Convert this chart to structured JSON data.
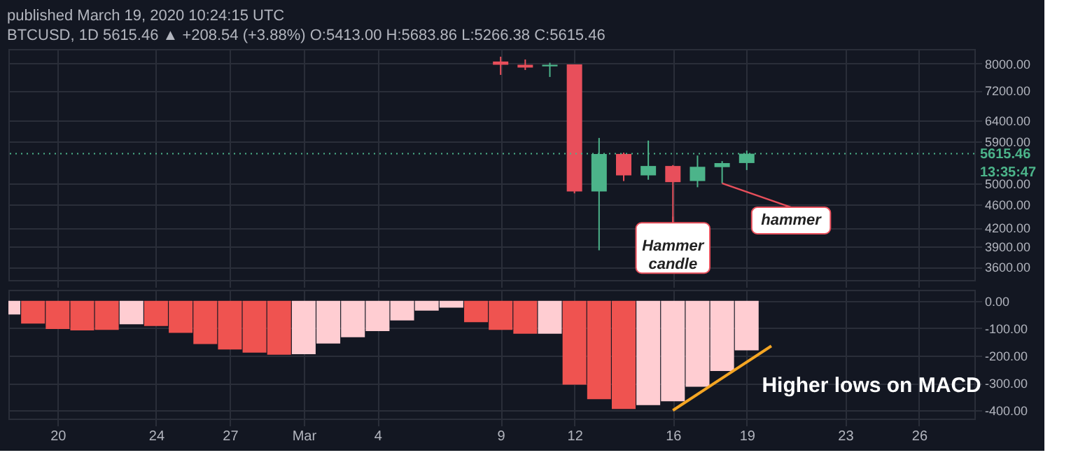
{
  "chart_data": [
    {
      "type": "candlestick",
      "title": "published March 19, 2020 10:24:15 UTC",
      "subtitle": "BTCUSD, 1D  5615.46 ▲ +208.54 (+3.88%) O:5413.00 H:5683.86 L:5266.38 C:5615.46",
      "x": [
        "2020-03-09",
        "2020-03-10",
        "2020-03-11",
        "2020-03-12",
        "2020-03-13",
        "2020-03-14",
        "2020-03-15",
        "2020-03-16",
        "2020-03-17",
        "2020-03-18",
        "2020-03-19"
      ],
      "ohlc": [
        [
          8064,
          8218,
          7652,
          7962
        ],
        [
          7962,
          8129,
          7800,
          7875
        ],
        [
          7912,
          8025,
          7590,
          7962
        ],
        [
          7975,
          7975,
          4806,
          4843
        ],
        [
          4843,
          5973,
          3843,
          5610
        ],
        [
          5610,
          5640,
          5044,
          5157
        ],
        [
          5157,
          5912,
          5070,
          5351
        ],
        [
          5351,
          5370,
          4391,
          5022
        ],
        [
          5044,
          5575,
          4923,
          5334
        ],
        [
          5326,
          5454,
          5000,
          5410
        ],
        [
          5413.0,
          5683.86,
          5266.38,
          5615.46
        ]
      ],
      "colors": [
        "#e84f5b",
        "#e84f5b",
        "#4cb48a",
        "#e84f5b",
        "#4cb48a",
        "#e84f5b",
        "#4cb48a",
        "#e84f5b",
        "#4cb48a",
        "#4cb48a",
        "#4cb48a"
      ],
      "log": true,
      "xlim": [
        "2020-02-18",
        "2020-03-28T06:00"
      ],
      "ylim": [
        3420,
        8470
      ],
      "xticks": [
        {
          "value": "2020-02-20",
          "label": null
        },
        {
          "value": "2020-02-24",
          "label": null
        },
        {
          "value": "2020-02-27",
          "label": null
        },
        {
          "value": "2020-03-01",
          "label": null
        },
        {
          "value": "2020-03-04",
          "label": null
        },
        {
          "value": "2020-03-09",
          "label": null
        },
        {
          "value": "2020-03-12",
          "label": null
        },
        {
          "value": "2020-03-16",
          "label": null
        },
        {
          "value": "2020-03-19",
          "label": null
        },
        {
          "value": "2020-03-23",
          "label": null
        },
        {
          "value": "2020-03-26",
          "label": null
        }
      ],
      "yticks": [
        {
          "value": 8000,
          "label": "8000.00"
        },
        {
          "value": 7200,
          "label": "7200.00"
        },
        {
          "value": 6400,
          "label": "6400.00"
        },
        {
          "value": 5900,
          "label": "5900.00"
        },
        {
          "value": 5000,
          "label": "5000.00"
        },
        {
          "value": 4600,
          "label": "4600.00"
        },
        {
          "value": 4200,
          "label": "4200.00"
        },
        {
          "value": 3900,
          "label": "3900.00"
        },
        {
          "value": 3600,
          "label": "3600.00"
        }
      ],
      "tick_labels": "y",
      "grid": true,
      "ref_lines": [
        {
          "axis": "y",
          "value": 5615.46,
          "label": "5615.46",
          "color": "#4cb48a",
          "line_style": "dotted"
        }
      ],
      "annotations": [
        {
          "text": "Hammer candle",
          "x": "2020-03-16",
          "y": 4391
        },
        {
          "text": "hammer",
          "x": "2020-03-18",
          "y": 5000
        },
        "13:35:47"
      ]
    },
    {
      "type": "bar",
      "x": [
        "2020-02-18",
        "2020-02-19",
        "2020-02-20",
        "2020-02-21",
        "2020-02-22",
        "2020-02-23",
        "2020-02-24",
        "2020-02-25",
        "2020-02-26",
        "2020-02-27",
        "2020-02-28",
        "2020-02-29",
        "2020-03-01",
        "2020-03-02",
        "2020-03-03",
        "2020-03-04",
        "2020-03-05",
        "2020-03-06",
        "2020-03-07",
        "2020-03-08",
        "2020-03-09",
        "2020-03-10",
        "2020-03-11",
        "2020-03-12",
        "2020-03-13",
        "2020-03-14",
        "2020-03-15",
        "2020-03-16",
        "2020-03-17",
        "2020-03-18",
        "2020-03-19"
      ],
      "series": [
        {
          "values": [
            -50,
            -83,
            -103,
            -108,
            -106,
            -86,
            -92,
            -117,
            -158,
            -178,
            -189,
            -197,
            -195,
            -156,
            -133,
            -111,
            -72,
            -36,
            -25,
            -78,
            -106,
            -120,
            -120,
            -306,
            -359,
            -395,
            -381,
            -367,
            -314,
            -256,
            -181
          ],
          "colors": [
            "#ffcdd2",
            "#ef5350",
            "#ef5350",
            "#ef5350",
            "#ef5350",
            "#ffcdd2",
            "#ef5350",
            "#ef5350",
            "#ef5350",
            "#ef5350",
            "#ef5350",
            "#ef5350",
            "#ffcdd2",
            "#ffcdd2",
            "#ffcdd2",
            "#ffcdd2",
            "#ffcdd2",
            "#ffcdd2",
            "#ffcdd2",
            "#ef5350",
            "#ef5350",
            "#ef5350",
            "#ffcdd2",
            "#ef5350",
            "#ef5350",
            "#ef5350",
            "#ffcdd2",
            "#ffcdd2",
            "#ffcdd2",
            "#ffcdd2",
            "#ffcdd2"
          ]
        },
        {
          "type": "line",
          "x": [
            "2020-03-16",
            "2020-03-20"
          ],
          "values": [
            -400,
            -165
          ],
          "color": "#f5a623"
        }
      ],
      "xlim": [
        "2020-02-18",
        "2020-03-28T06:00"
      ],
      "ylim": [
        -430,
        40
      ],
      "xticks": [
        {
          "value": "2020-02-20",
          "label": "20"
        },
        {
          "value": "2020-02-24",
          "label": "24"
        },
        {
          "value": "2020-02-27",
          "label": "27"
        },
        {
          "value": "2020-03-01",
          "label": "Mar"
        },
        {
          "value": "2020-03-04",
          "label": "4"
        },
        {
          "value": "2020-03-09",
          "label": "9"
        },
        {
          "value": "2020-03-12",
          "label": "12"
        },
        {
          "value": "2020-03-16",
          "label": "16"
        },
        {
          "value": "2020-03-19",
          "label": "19"
        },
        {
          "value": "2020-03-23",
          "label": "23"
        },
        {
          "value": "2020-03-26",
          "label": "26"
        }
      ],
      "yticks": [
        {
          "value": 0,
          "label": "0.00"
        },
        {
          "value": -100,
          "label": "-100.00"
        },
        {
          "value": -200,
          "label": "-200.00"
        },
        {
          "value": -300,
          "label": "-300.00"
        },
        {
          "value": -400,
          "label": "-400.00"
        }
      ],
      "grid": true,
      "annotations": [
        "Higher lows on MACD"
      ]
    }
  ]
}
